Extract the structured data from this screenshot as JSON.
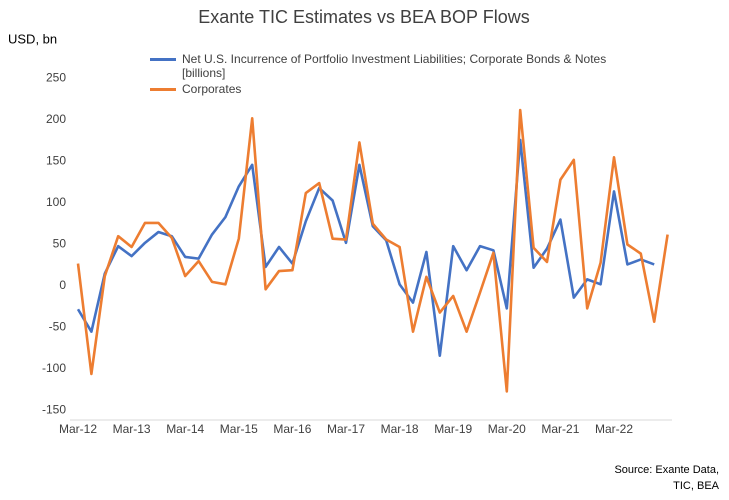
{
  "chart_data": {
    "type": "line",
    "title": "Exante TIC Estimates vs BEA BOP Flows",
    "y_label": "USD, bn",
    "source": "Source: Exante Data, TIC, BEA",
    "categories": [
      "Mar-12",
      null,
      null,
      null,
      "Mar-13",
      null,
      null,
      null,
      "Mar-14",
      null,
      null,
      null,
      "Mar-15",
      null,
      null,
      null,
      "Mar-16",
      null,
      null,
      null,
      "Mar-17",
      null,
      null,
      null,
      "Mar-18",
      null,
      null,
      null,
      "Mar-19",
      null,
      null,
      null,
      "Mar-20",
      null,
      null,
      null,
      "Mar-21",
      null,
      null,
      null,
      "Mar-22",
      null,
      null,
      null,
      null
    ],
    "series": [
      {
        "name": "Net U.S. Incurrence of Portfolio Investment Liabilities; Corporate Bonds & Notes [billions]",
        "color": "#4472c4",
        "values": [
          -28,
          -55,
          15,
          48,
          36,
          52,
          65,
          60,
          35,
          33,
          62,
          83,
          120,
          146,
          23,
          47,
          27,
          78,
          118,
          103,
          52,
          146,
          72,
          55,
          2,
          -20,
          41,
          -84,
          48,
          19,
          48,
          43,
          -27,
          176,
          22,
          45,
          80,
          -14,
          8,
          2,
          114,
          26,
          32,
          26,
          null
        ]
      },
      {
        "name": "Corporates",
        "color": "#ed7d31",
        "values": [
          27,
          -106,
          12,
          60,
          47,
          76,
          76,
          58,
          12,
          30,
          5,
          2,
          57,
          202,
          -4,
          18,
          19,
          112,
          124,
          57,
          56,
          173,
          75,
          56,
          47,
          -55,
          11,
          -32,
          -12,
          -55,
          -8,
          40,
          -127,
          212,
          46,
          29,
          128,
          152,
          -27,
          28,
          155,
          50,
          39,
          -43,
          62
        ]
      }
    ],
    "ylim": [
      -150,
      250
    ],
    "yticks": [
      -150,
      -100,
      -50,
      0,
      50,
      100,
      150,
      200,
      250
    ],
    "grid": false
  }
}
